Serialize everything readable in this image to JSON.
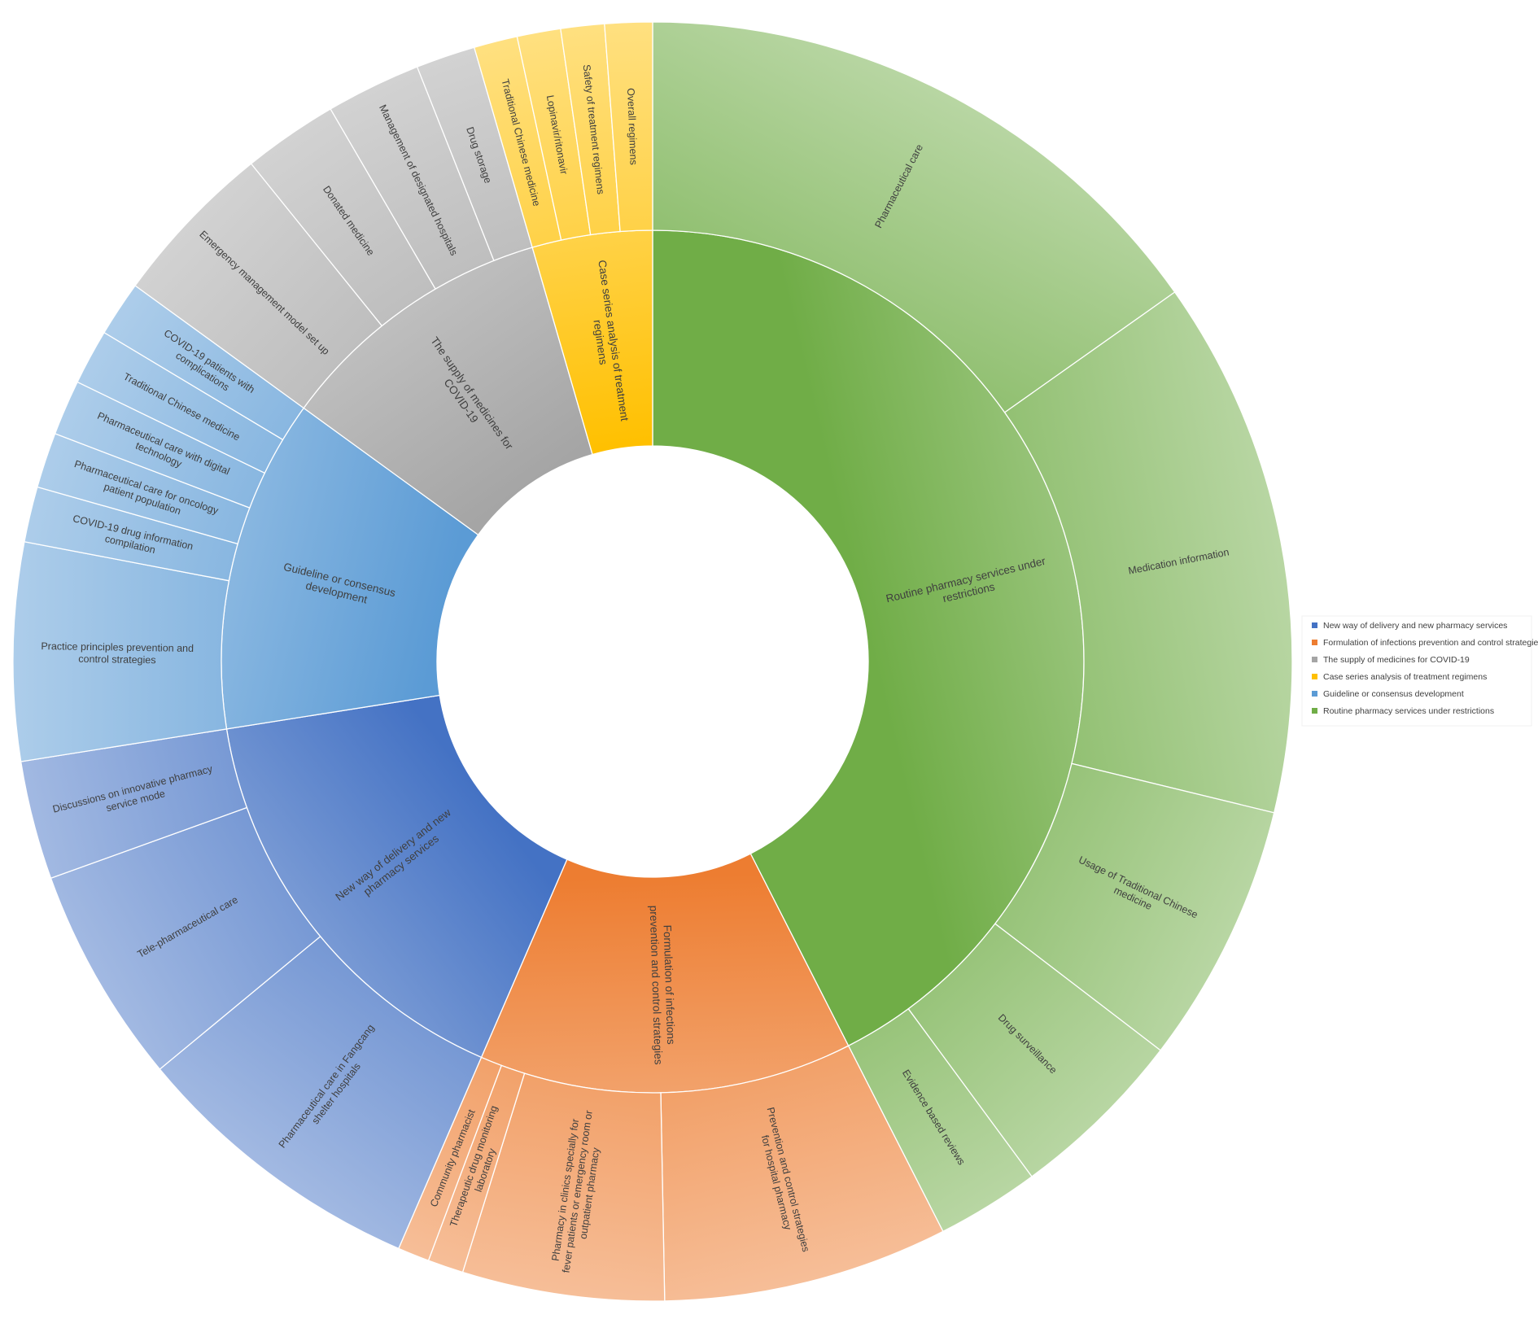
{
  "chart_data": {
    "type": "sunburst",
    "total": 100,
    "start_angle_deg": 0,
    "categories": [
      {
        "name": "Routine pharmacy services under restrictions",
        "color": "#70ad47",
        "value": 42.5,
        "children": [
          {
            "name": "Pharmaceutical care",
            "value": 15.2
          },
          {
            "name": "Medication information",
            "value": 13.6
          },
          {
            "name": "Usage  of Traditional Chinese medicine",
            "value": 6.6
          },
          {
            "name": "Drug surveillance",
            "value": 4.5
          },
          {
            "name": "Evidence based reviews",
            "value": 2.6
          }
        ]
      },
      {
        "name": "Formulation of infections prevention and control strategies",
        "color": "#ed7d31",
        "value": 14.0,
        "children": [
          {
            "name": "Prevention and control strategies for hospital pharmacy",
            "value": 7.2
          },
          {
            "name": "Pharmacy in clinics specially for fever patients or emergency room or outpatient pharmacy",
            "value": 5.1
          },
          {
            "name": "Therapeutic drug monitoring laboratory",
            "value": 0.9
          },
          {
            "name": "Community pharmacist",
            "value": 0.8
          }
        ]
      },
      {
        "name": "New way of delivery and new pharmacy services",
        "color": "#4472c4",
        "value": 16.0,
        "children": [
          {
            "name": "Pharmaceutical care in Fangcang shelter hospitals",
            "value": 7.5
          },
          {
            "name": "Tele-pharmaceutical care",
            "value": 5.5
          },
          {
            "name": "Discussions on innovative pharmacy service mode",
            "value": 3.0
          }
        ]
      },
      {
        "name": "Guideline or consensus development",
        "color": "#5b9bd5",
        "value": 12.5,
        "children": [
          {
            "name": "Practice principles prevention and control strategies",
            "value": 5.5
          },
          {
            "name": "COVID-19 drug information compilation",
            "value": 1.4
          },
          {
            "name": "Pharmaceutical care for oncology patient population",
            "value": 1.4
          },
          {
            "name": "Pharmaceutical care with digital technology",
            "value": 1.4
          },
          {
            "name": "Traditional Chinese medicine",
            "value": 1.4
          },
          {
            "name": "COVID-19 patients with complications",
            "value": 1.4
          }
        ]
      },
      {
        "name": "The supply of medicines for COVID-19",
        "color": "#a5a5a5",
        "value": 10.5,
        "children": [
          {
            "name": "Emergency management  model set up",
            "value": 4.2
          },
          {
            "name": "Donated medicine",
            "value": 2.4
          },
          {
            "name": "Management  of designated hospitals",
            "value": 2.4
          },
          {
            "name": "Drug storage",
            "value": 1.5
          }
        ]
      },
      {
        "name": "Case series analysis of treatment regimens",
        "color": "#ffc000",
        "value": 4.5,
        "children": [
          {
            "name": "Traditional Chinese medicine",
            "value": 1.1
          },
          {
            "name": "Lopinavir/ritonavir",
            "value": 1.1
          },
          {
            "name": "Safety of treatment regimens",
            "value": 1.1
          },
          {
            "name": "Overall regimens",
            "value": 1.2
          }
        ]
      }
    ],
    "legend": {
      "position": "right",
      "entries": [
        {
          "label": "New way of delivery and new pharmacy services",
          "color": "#4472c4"
        },
        {
          "label": "Formulation of infections prevention and control strategies",
          "color": "#ed7d31"
        },
        {
          "label": "The supply of medicines for COVID-19",
          "color": "#a5a5a5"
        },
        {
          "label": "Case series analysis of treatment regimens",
          "color": "#ffc000"
        },
        {
          "label": "Guideline or consensus development",
          "color": "#5b9bd5"
        },
        {
          "label": "Routine pharmacy services under restrictions",
          "color": "#70ad47"
        }
      ]
    }
  }
}
